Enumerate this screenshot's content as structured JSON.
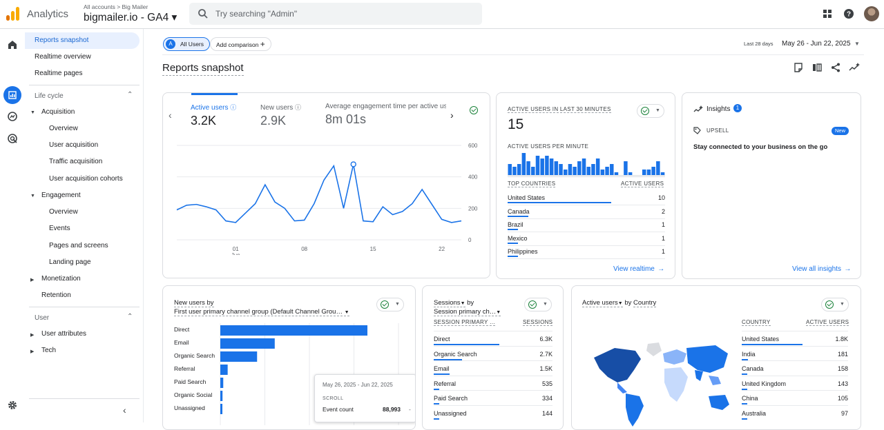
{
  "header": {
    "app_name": "Analytics",
    "breadcrumb": "All accounts > Big Mailer",
    "property": "bigmailer.io - GA4 ▾",
    "search_placeholder": "Try searching \"Admin\""
  },
  "nav": {
    "items": [
      {
        "label": "Reports snapshot"
      },
      {
        "label": "Realtime overview"
      },
      {
        "label": "Realtime pages"
      }
    ],
    "lifecycle_label": "Life cycle",
    "acquisition": "Acquisition",
    "acq_items": [
      "Overview",
      "User acquisition",
      "Traffic acquisition",
      "User acquisition cohorts"
    ],
    "engagement": "Engagement",
    "eng_items": [
      "Overview",
      "Events",
      "Pages and screens",
      "Landing page"
    ],
    "monetization": "Monetization",
    "retention": "Retention",
    "user_label": "User",
    "user_attributes": "User attributes",
    "tech": "Tech"
  },
  "toolbar": {
    "all_users": "All Users",
    "add_comparison": "Add comparison",
    "date_label": "Last 28 days",
    "date_range": "May 26 - Jun 22, 2025",
    "page_title": "Reports snapshot"
  },
  "kpi": {
    "active_users_label": "Active users",
    "active_users": "3.2K",
    "new_users_label": "New users",
    "new_users": "2.9K",
    "engagement_label": "Average engagement time per active us",
    "engagement": "8m 01s"
  },
  "chart_data": {
    "type": "line",
    "x_ticks": [
      "01",
      "08",
      "15",
      "22"
    ],
    "x_sub": "Jun",
    "y_ticks": [
      "600",
      "400",
      "200",
      "0"
    ],
    "ylim": [
      0,
      600
    ],
    "values": [
      190,
      220,
      225,
      210,
      190,
      120,
      110,
      170,
      230,
      350,
      240,
      200,
      120,
      125,
      230,
      380,
      470,
      200,
      480,
      120,
      115,
      210,
      160,
      180,
      230,
      320,
      225,
      130,
      110,
      120
    ]
  },
  "realtime": {
    "title": "ACTIVE USERS IN LAST 30 MINUTES",
    "count": "15",
    "per_minute": "ACTIVE USERS PER MINUTE",
    "bars": [
      4,
      3,
      4,
      8,
      5,
      3,
      7,
      6,
      7,
      6,
      5,
      4,
      2,
      4,
      3,
      5,
      6,
      3,
      4,
      6,
      2,
      3,
      4,
      1,
      0,
      5,
      1,
      0,
      0,
      2,
      2,
      3,
      5,
      1
    ],
    "col1": "TOP COUNTRIES",
    "col2": "ACTIVE USERS",
    "rows": [
      {
        "name": "United States",
        "value": "10",
        "share": 1.0
      },
      {
        "name": "Canada",
        "value": "2",
        "share": 0.2
      },
      {
        "name": "Brazil",
        "value": "1",
        "share": 0.1
      },
      {
        "name": "Mexico",
        "value": "1",
        "share": 0.1
      },
      {
        "name": "Philippines",
        "value": "1",
        "share": 0.1
      }
    ],
    "link": "View realtime"
  },
  "insights": {
    "title": "Insights",
    "count": "1",
    "tag": "UPSELL",
    "badge": "New",
    "text": "Stay connected to your business on the go",
    "link": "View all insights"
  },
  "new_users_card": {
    "title": "New users by",
    "subtitle": "First user primary channel group (Default Channel Grou…",
    "rows": [
      {
        "label": "Direct",
        "share": 1.0
      },
      {
        "label": "Email",
        "share": 0.37
      },
      {
        "label": "Organic Search",
        "share": 0.25
      },
      {
        "label": "Referral",
        "share": 0.05
      },
      {
        "label": "Paid Search",
        "share": 0.02
      },
      {
        "label": "Organic Social",
        "share": 0.015
      },
      {
        "label": "Unassigned",
        "share": 0.01
      }
    ],
    "tooltip": {
      "date": "May 26, 2025 - Jun 22, 2025",
      "metric_group": "SCROLL",
      "metric_label": "Event count",
      "metric_value": "88,993"
    }
  },
  "sessions_card": {
    "title": "Sessions",
    "by": "by",
    "subtitle": "Session primary ch…",
    "col1": "SESSION PRIMARY …",
    "col2": "SESSIONS",
    "rows": [
      {
        "name": "Direct",
        "value": "6.3K",
        "share": 1.0
      },
      {
        "name": "Organic Search",
        "value": "2.7K",
        "share": 0.43
      },
      {
        "name": "Email",
        "value": "1.5K",
        "share": 0.24
      },
      {
        "name": "Referral",
        "value": "535",
        "share": 0.08
      },
      {
        "name": "Paid Search",
        "value": "334",
        "share": 0.05
      },
      {
        "name": "Unassigned",
        "value": "144",
        "share": 0.02
      }
    ]
  },
  "country_card": {
    "title": "Active users",
    "by": "by",
    "dimension": "Country",
    "col1": "COUNTRY",
    "col2": "ACTIVE USERS",
    "rows": [
      {
        "name": "United States",
        "value": "1.8K",
        "share": 1.0
      },
      {
        "name": "India",
        "value": "181",
        "share": 0.1
      },
      {
        "name": "Canada",
        "value": "158",
        "share": 0.09
      },
      {
        "name": "United Kingdom",
        "value": "143",
        "share": 0.08
      },
      {
        "name": "China",
        "value": "105",
        "share": 0.06
      },
      {
        "name": "Australia",
        "value": "97",
        "share": 0.05
      }
    ]
  },
  "colors": {
    "accent": "#1a73e8",
    "bar": "#1a73e8",
    "success": "#188038"
  }
}
